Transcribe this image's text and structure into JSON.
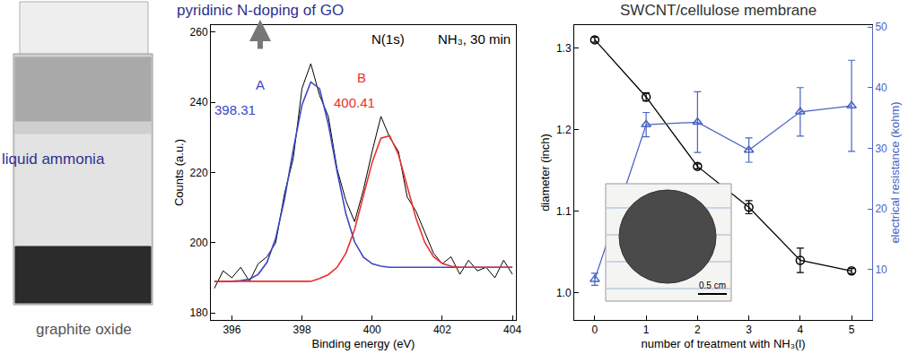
{
  "panel_labels": {
    "liquid": "liquid ammonia",
    "solid": "graphite oxide"
  },
  "chart_data": [
    {
      "type": "line",
      "title": "pyridinic N-doping of GO",
      "x_label": "Binding energy (eV)",
      "y_label": "Counts (a.u.)",
      "x": [
        395.5,
        395.75,
        396,
        396.25,
        396.5,
        396.75,
        397,
        397.25,
        397.5,
        397.75,
        398,
        398.25,
        398.5,
        398.75,
        399,
        399.25,
        399.5,
        399.75,
        400,
        400.25,
        400.5,
        400.75,
        401,
        401.25,
        401.5,
        401.75,
        402,
        402.25,
        402.5,
        402.75,
        403,
        403.25,
        403.5,
        403.75,
        404
      ],
      "series": [
        {
          "color": "#000000",
          "values": [
            187,
            192,
            190,
            193,
            189,
            194,
            196,
            200,
            214,
            224,
            244,
            251,
            242,
            236,
            221,
            212,
            206,
            215,
            226,
            236,
            230,
            226,
            213,
            209,
            203,
            197,
            194,
            196,
            191,
            195,
            192,
            193,
            190,
            195,
            191
          ]
        },
        {
          "color": "#3b46c4",
          "values": [
            189,
            189,
            189,
            189.2,
            189.6,
            191,
            194.4,
            201.3,
            212.4,
            226.5,
            239.3,
            245.8,
            243.9,
            233.8,
            220.3,
            208.3,
            200.2,
            195.9,
            194,
            193.3,
            193,
            193,
            193,
            193,
            193,
            193,
            193,
            193,
            193,
            193,
            193,
            193,
            193,
            193,
            193
          ]
        },
        {
          "color": "#e8312f",
          "values": [
            189,
            189,
            189,
            189,
            189,
            189,
            189,
            189,
            189,
            189,
            189,
            189,
            189.8,
            190.9,
            193,
            197,
            203.8,
            213.1,
            222.9,
            229.8,
            230.5,
            225.1,
            216.1,
            207,
            200.1,
            196,
            194.1,
            193.3,
            193,
            193,
            193,
            193,
            193,
            193,
            193
          ]
        }
      ],
      "xlim": [
        395.4,
        404.1
      ],
      "xticks": [
        396,
        398,
        400,
        402,
        404
      ],
      "ylim": [
        178,
        262
      ],
      "yticks": [
        180,
        200,
        220,
        240,
        260
      ],
      "grid": false,
      "annotations": [
        {
          "text": "A",
          "x": 396.8,
          "y": 245,
          "color": "#3b46c4"
        },
        {
          "text": "398.31",
          "x": 396.1,
          "y": 238,
          "color": "#3b46c4"
        },
        {
          "text": "B",
          "x": 399.7,
          "y": 247,
          "color": "#e8312f"
        },
        {
          "text": "400.41",
          "x": 399.5,
          "y": 240,
          "color": "#e8312f"
        },
        {
          "text": "N(1s)",
          "x": 400.45,
          "y": 258,
          "color": "#000000"
        },
        {
          "text": "NH₃, 30 min",
          "x": 402.9,
          "y": 258,
          "color": "#000000"
        }
      ]
    },
    {
      "type": "line",
      "title": "SWCNT/cellulose membrane",
      "x_label": "number of treatment with NH₃(l)",
      "y_label": "diameter (inch)",
      "y2_label": "electrical resistance (kohm)",
      "x": [
        0,
        1,
        2,
        3,
        4,
        5
      ],
      "series": [
        {
          "color": "#000000",
          "marker": "circle-open",
          "values": [
            1.31,
            1.24,
            1.155,
            1.105,
            1.04,
            1.027
          ],
          "errors": [
            0.003,
            0.005,
            0.003,
            0.008,
            0.015,
            0.003
          ]
        },
        {
          "color": "#4a64c2",
          "marker": "triangle-up-open",
          "axis": "y2",
          "values": [
            8.4,
            33.9,
            34.3,
            29.7,
            36,
            37
          ],
          "errors": [
            1,
            2,
            5,
            2,
            4,
            7.5
          ]
        }
      ],
      "xlim": [
        -0.4,
        5.4
      ],
      "xticks": [
        0,
        1,
        2,
        3,
        4,
        5
      ],
      "ylim": [
        0.967,
        1.328
      ],
      "yticks": [
        {
          "value": 1,
          "label": "1.0"
        },
        1.1,
        1.2,
        1.3
      ],
      "y2lim": [
        1.7,
        50.3
      ],
      "y2ticks": [
        10,
        20,
        30,
        40,
        50
      ],
      "grid": false,
      "inset_text": "0.5 cm"
    }
  ]
}
